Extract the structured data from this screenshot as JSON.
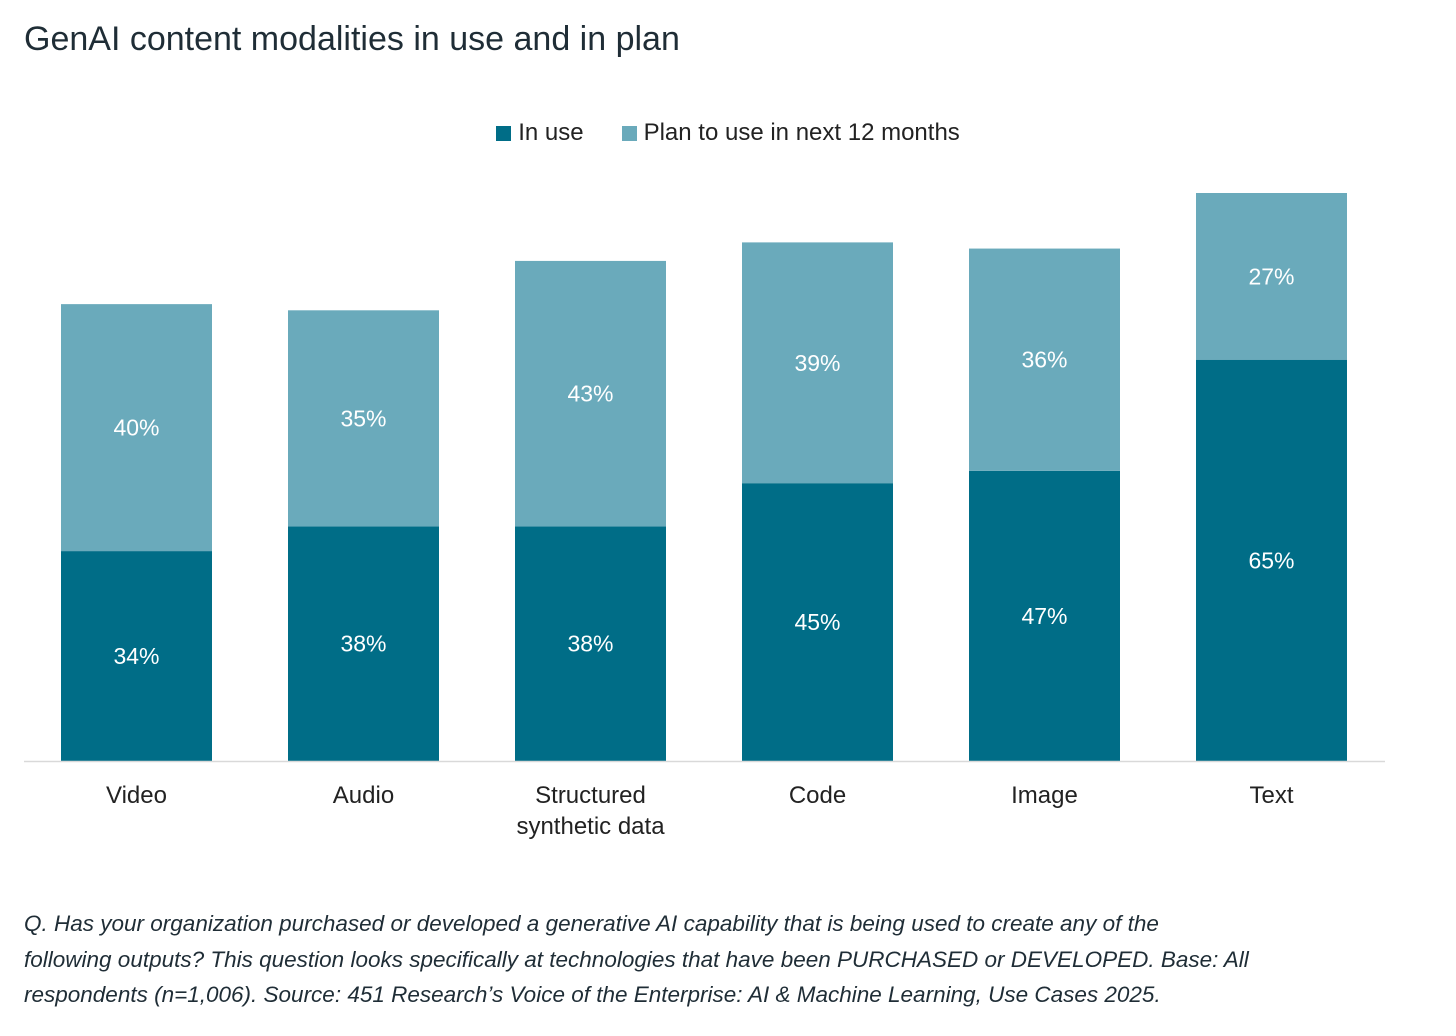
{
  "title": "GenAI content modalities in use and in plan",
  "colors": {
    "in_use": "#006d87",
    "plan": "#6aaabb",
    "axis": "#d9d9d9"
  },
  "chart_data": {
    "type": "bar",
    "stacked": true,
    "title": "GenAI content modalities in use and in plan",
    "categories": [
      [
        "Video"
      ],
      [
        "Audio"
      ],
      [
        "Structured",
        "synthetic data"
      ],
      [
        "Code"
      ],
      [
        "Image"
      ],
      [
        "Text"
      ]
    ],
    "series": [
      {
        "name": "In use",
        "values": [
          34,
          38,
          38,
          45,
          47,
          65
        ]
      },
      {
        "name": "Plan to use in next 12 months",
        "values": [
          40,
          35,
          43,
          39,
          36,
          27
        ]
      }
    ],
    "unit": "%",
    "ylim": [
      0,
      92
    ],
    "legend_position": "top-center",
    "grid": false
  },
  "footnote": [
    "Q. Has your organization purchased or developed a generative AI capability that is being used to create any of the",
    "following outputs? This question looks specifically at technologies that have been PURCHASED or DEVELOPED. Base: All",
    "respondents (n=1,006). Source: 451 Research’s Voice of the Enterprise: AI & Machine Learning, Use Cases 2025."
  ]
}
